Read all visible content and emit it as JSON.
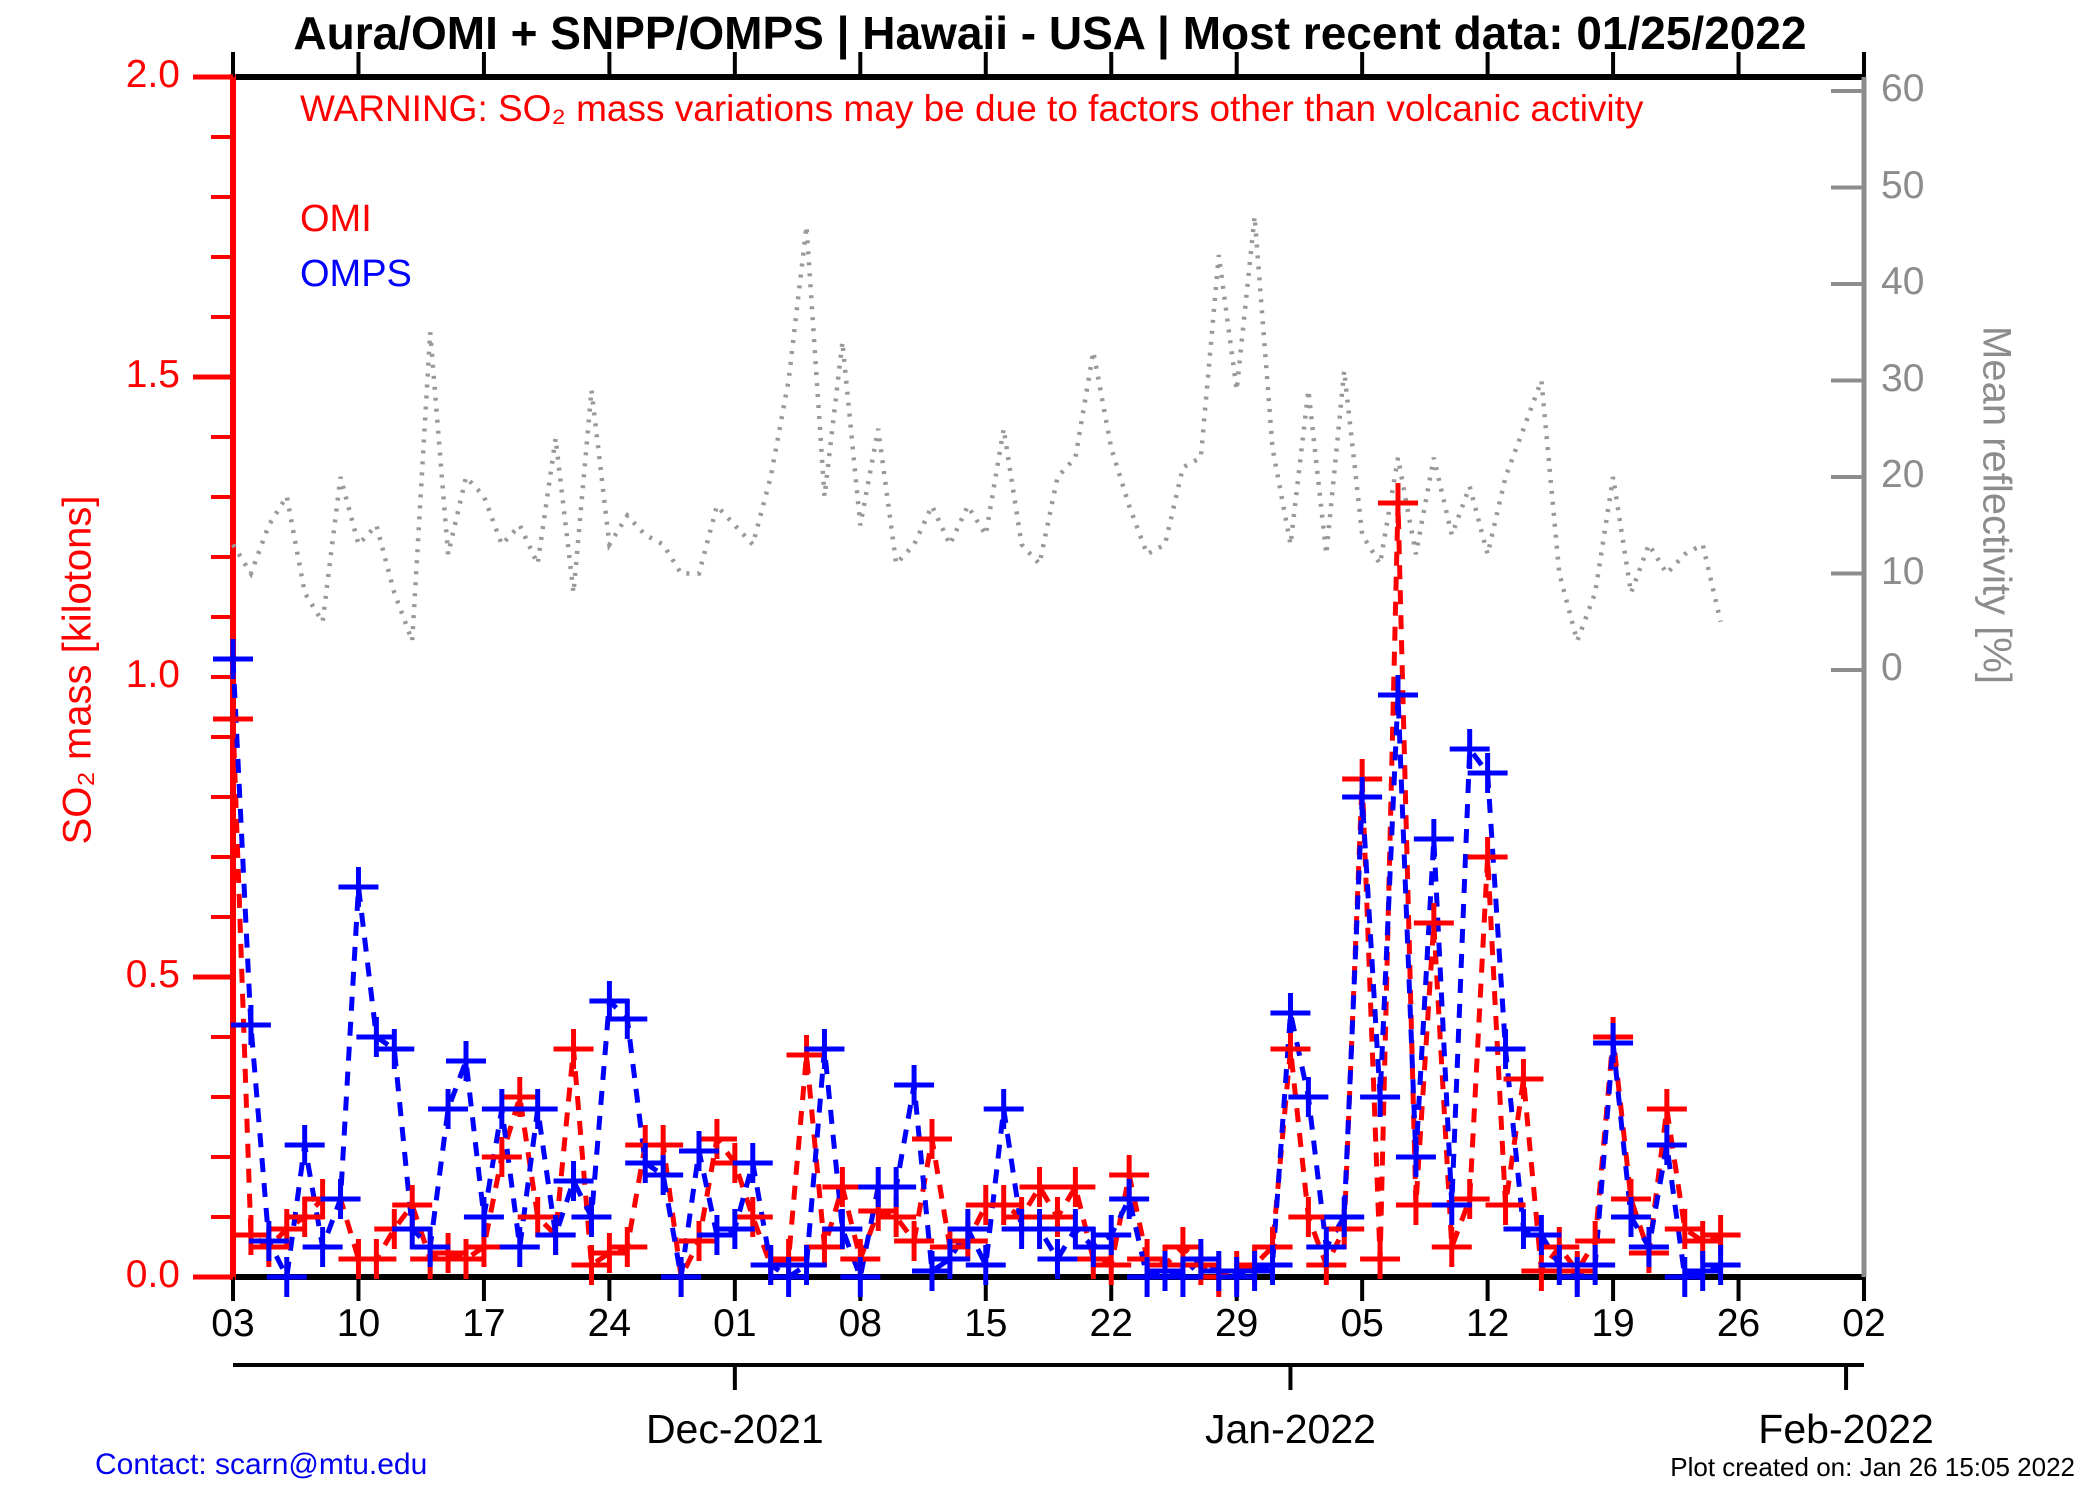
{
  "title": "Aura/OMI + SNPP/OMPS | Hawaii - USA | Most recent data: 01/25/2022",
  "warning": "WARNING: SO₂ mass variations may be due to factors other than volcanic activity",
  "legend": {
    "omi_label": "OMI",
    "omps_label": "OMPS"
  },
  "y_left_axis": {
    "label": "SO₂ mass [kilotons]",
    "tick_labels": [
      "0.0",
      "0.5",
      "1.0",
      "1.5",
      "2.0"
    ],
    "tick_values": [
      0.0,
      0.5,
      1.0,
      1.5,
      2.0
    ],
    "color": "#ff0000"
  },
  "y_right_axis": {
    "label": "Mean reflectivity [%]",
    "tick_labels": [
      "0",
      "10",
      "20",
      "30",
      "40",
      "50",
      "60"
    ],
    "tick_values": [
      0,
      10,
      20,
      30,
      40,
      50,
      60
    ],
    "color": "#8c8c8c"
  },
  "x_axis": {
    "day_tick_labels": [
      "03",
      "10",
      "17",
      "24",
      "01",
      "08",
      "15",
      "22",
      "29",
      "05",
      "12",
      "19",
      "26",
      "02"
    ],
    "day_tick_offsets": [
      0,
      7,
      14,
      21,
      28,
      35,
      42,
      49,
      56,
      63,
      70,
      77,
      84,
      91
    ],
    "month_labels": [
      "Dec-2021",
      "Jan-2022",
      "Feb-2022"
    ],
    "month_tick_offsets": [
      28,
      59,
      90
    ],
    "span_days": 91
  },
  "footer": {
    "contact": "Contact: scarn@mtu.edu",
    "created": "Plot created on: Jan 26 15:05 2022"
  },
  "chart_data": {
    "type": "line",
    "title": "Aura/OMI + SNPP/OMPS | Hawaii - USA | Most recent data: 01/25/2022",
    "x_start_date": "2021-11-03",
    "x_end_date_data": "2022-01-25",
    "x_end_date_axis": "2022-02-02",
    "ylim_left": [
      0.0,
      2.0
    ],
    "ylabel_left": "SO₂ mass [kilotons]",
    "ylim_right_labeled": [
      0,
      60
    ],
    "ylabel_right": "Mean reflectivity [%]",
    "grid": false,
    "legend_position": "top-left-inside",
    "series": [
      {
        "name": "OMI",
        "axis": "left",
        "color": "#ff0000",
        "line_style": "dashed",
        "marker": "plus",
        "values": [
          0.93,
          0.07,
          0.05,
          0.08,
          0.1,
          0.13,
          0.13,
          0.03,
          0.03,
          0.08,
          0.12,
          0.03,
          0.04,
          0.03,
          0.05,
          0.2,
          0.3,
          0.1,
          0.07,
          0.38,
          0.02,
          0.04,
          0.05,
          0.22,
          0.22,
          0.0,
          0.06,
          0.23,
          0.19,
          0.1,
          0.02,
          0.03,
          0.37,
          0.05,
          0.15,
          0.03,
          0.11,
          0.1,
          0.06,
          0.23,
          0.05,
          0.06,
          0.12,
          0.12,
          0.1,
          0.15,
          0.1,
          0.15,
          0.03,
          0.02,
          0.17,
          0.03,
          0.02,
          0.05,
          0.02,
          0.0,
          0.01,
          0.02,
          0.05,
          0.38,
          0.1,
          0.02,
          0.08,
          0.83,
          0.03,
          1.29,
          0.12,
          0.59,
          0.05,
          0.13,
          0.7,
          0.12,
          0.33,
          0.01,
          0.05,
          0.01,
          0.06,
          0.4,
          0.13,
          0.04,
          0.28,
          0.08,
          0.06,
          0.07
        ]
      },
      {
        "name": "OMPS",
        "axis": "left",
        "color": "#0000ff",
        "line_style": "dashed",
        "marker": "plus",
        "values": [
          1.03,
          0.42,
          0.06,
          0.0,
          0.22,
          0.05,
          0.13,
          0.65,
          0.4,
          0.38,
          0.08,
          0.05,
          0.28,
          0.36,
          0.1,
          0.28,
          0.05,
          0.28,
          0.07,
          0.16,
          0.1,
          0.46,
          0.43,
          0.19,
          0.17,
          0.0,
          0.21,
          0.07,
          0.08,
          0.19,
          0.02,
          0.0,
          0.02,
          0.38,
          0.08,
          0.0,
          0.15,
          0.15,
          0.32,
          0.01,
          0.03,
          0.08,
          0.02,
          0.28,
          0.08,
          0.08,
          0.03,
          0.08,
          0.05,
          0.07,
          0.13,
          0.0,
          0.01,
          0.0,
          0.03,
          0.01,
          0.0,
          0.01,
          0.02,
          0.44,
          0.3,
          0.05,
          0.1,
          0.8,
          0.3,
          0.97,
          0.2,
          0.73,
          0.12,
          0.88,
          0.84,
          0.38,
          0.08,
          0.07,
          0.02,
          0.0,
          0.02,
          0.39,
          0.1,
          0.05,
          0.22,
          0.0,
          0.01,
          0.02
        ]
      },
      {
        "name": "Mean reflectivity",
        "axis": "right",
        "color": "#999999",
        "line_style": "dotted",
        "marker": "none",
        "values": [
          13,
          10,
          15,
          18,
          8,
          5,
          20,
          13,
          15,
          8,
          3,
          35,
          12,
          20,
          18,
          13,
          15,
          11,
          24,
          8,
          29,
          13,
          16,
          14,
          13,
          10,
          10,
          17,
          15,
          13,
          20,
          30,
          46,
          18,
          34,
          15,
          25,
          11,
          13,
          17,
          13,
          17,
          14,
          25,
          13,
          11,
          20,
          22,
          33,
          23,
          17,
          12,
          13,
          21,
          22,
          43,
          29,
          47,
          23,
          13,
          29,
          12,
          31,
          14,
          11,
          22,
          12,
          22,
          14,
          19,
          12,
          20,
          25,
          30,
          10,
          3,
          8,
          20,
          8,
          13,
          10,
          12,
          13,
          5
        ]
      }
    ]
  }
}
